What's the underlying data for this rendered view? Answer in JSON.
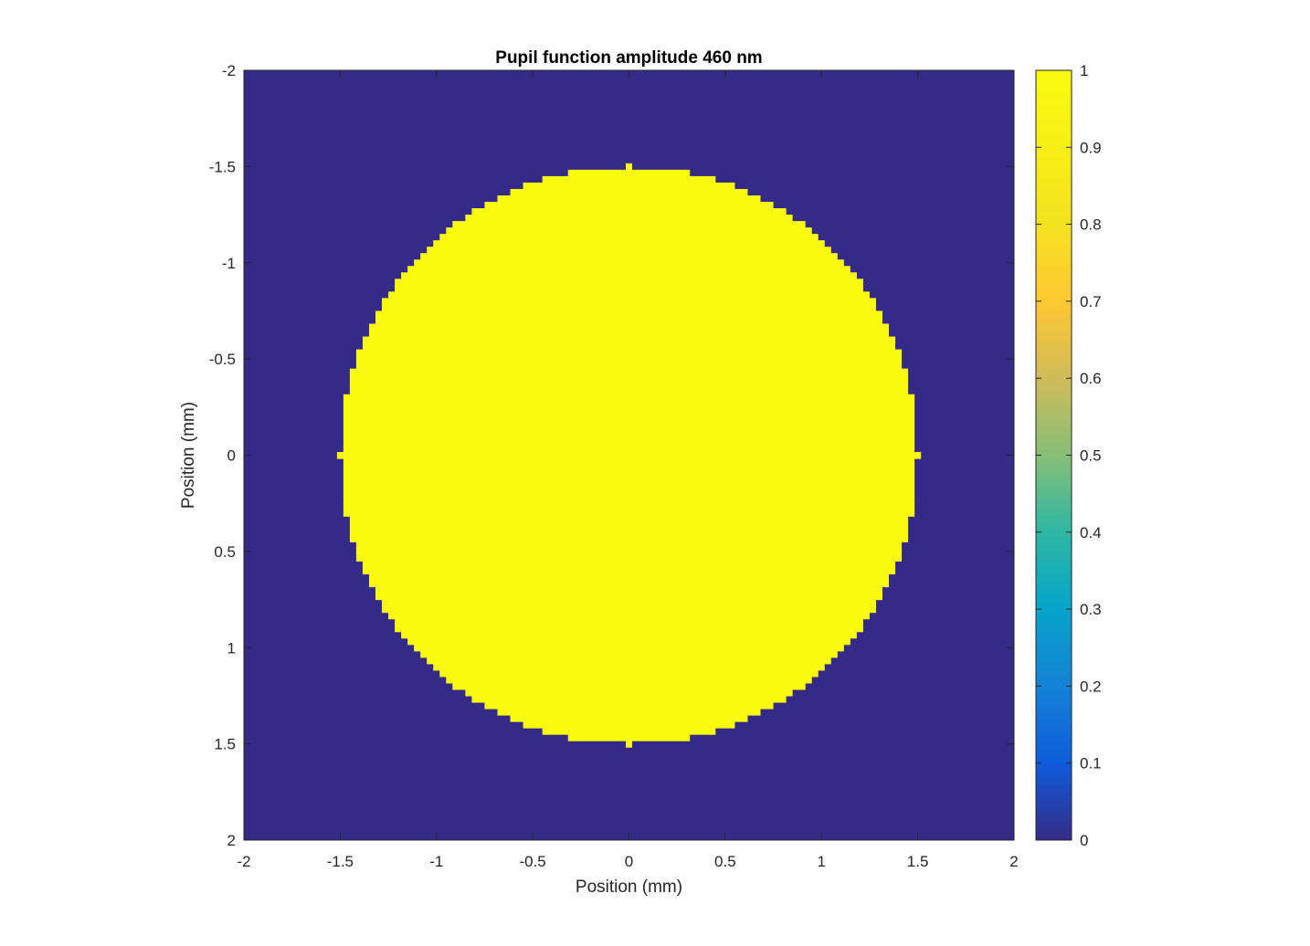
{
  "chart_data": {
    "type": "heatmap",
    "title": "Pupil function amplitude 460 nm",
    "xlabel": "Position (mm)",
    "ylabel": "Position (mm)",
    "xlim": [
      -2,
      2
    ],
    "ylim": [
      -2,
      2
    ],
    "y_direction": "reversed",
    "x_ticks": [
      "-2",
      "-1.5",
      "-1",
      "-0.5",
      "0",
      "0.5",
      "1",
      "1.5",
      "2"
    ],
    "y_ticks": [
      "-2",
      "-1.5",
      "-1",
      "-0.5",
      "0",
      "0.5",
      "1",
      "1.5",
      "2"
    ],
    "grid": false,
    "field": {
      "description_values": "amplitude 1 inside circle of radius 1.5 mm centered at origin, 0 outside",
      "center": [
        0,
        0
      ],
      "radius": 1.5,
      "inside_value": 1,
      "outside_value": 0,
      "sample_count": 121
    },
    "colorbar": {
      "placement": "right",
      "limits": [
        0,
        1
      ],
      "ticks": [
        "0",
        "0.1",
        "0.2",
        "0.3",
        "0.4",
        "0.5",
        "0.6",
        "0.7",
        "0.8",
        "0.9",
        "1"
      ],
      "colormap": "parula",
      "low_color": "#352a87",
      "high_color": "#f9fb0e"
    }
  }
}
